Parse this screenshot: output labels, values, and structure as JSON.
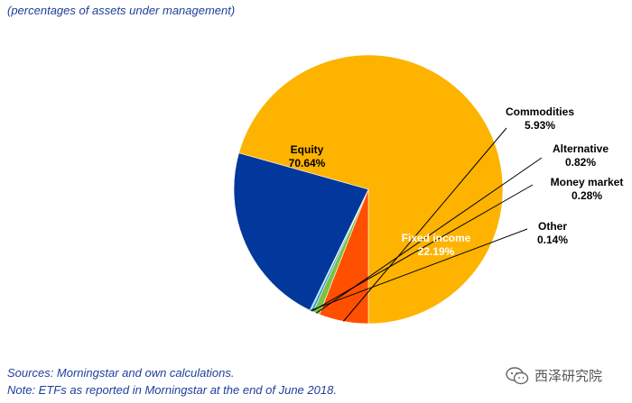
{
  "subtitle": "(percentages of assets under management)",
  "notes": {
    "sources": "Sources: Morningstar and own calculations.",
    "note": "Note: ETFs as reported in Morningstar at the end of June 2018."
  },
  "watermark": {
    "text": "西泽研究院",
    "icon": "wechat-logo-icon"
  },
  "chart_data": {
    "type": "pie",
    "title": "",
    "slices": [
      {
        "name": "Equity",
        "value": 70.64,
        "label": "70.64%",
        "color": "#FDB300"
      },
      {
        "name": "Commodities",
        "value": 5.93,
        "label": "5.93%",
        "color": "#FE5000"
      },
      {
        "name": "Alternative",
        "value": 0.82,
        "label": "0.82%",
        "color": "#7CC241"
      },
      {
        "name": "Money market",
        "value": 0.28,
        "label": "0.28%",
        "color": "#1F8FE0"
      },
      {
        "name": "Other",
        "value": 0.14,
        "label": "0.14%",
        "color": "#5BC8F0"
      },
      {
        "name": "Fixed income",
        "value": 22.19,
        "label": "22.19%",
        "color": "#02389B"
      }
    ]
  }
}
